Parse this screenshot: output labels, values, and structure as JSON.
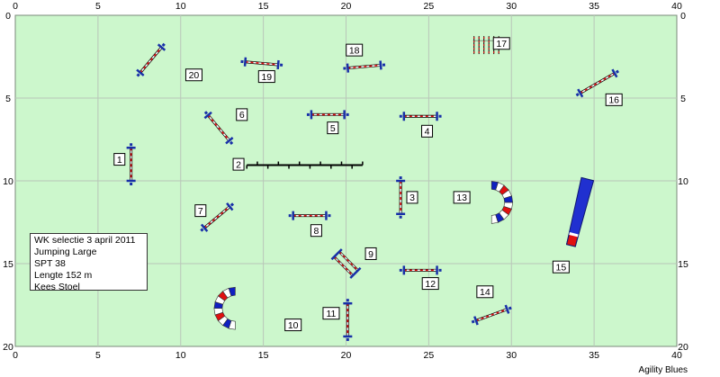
{
  "course": {
    "arena": {
      "width_m": 40,
      "height_m": 20
    },
    "axis": {
      "x_ticks": [
        0,
        5,
        10,
        15,
        20,
        25,
        30,
        35,
        40
      ],
      "y_ticks": [
        0,
        5,
        10,
        15,
        20
      ]
    },
    "colors": {
      "field": "#ccf7cc",
      "grid": "#b9c6b9",
      "pole_red": "#e01010",
      "pole_blue": "#1020a0",
      "stand": "#1830a8"
    },
    "obstacles": [
      {
        "number": "1",
        "type": "jump",
        "x": 7,
        "y": 9,
        "angle": 90,
        "length": 2,
        "label_x": 6.3,
        "label_y": 8.7
      },
      {
        "number": "2",
        "type": "weave",
        "x": 17.5,
        "y": 9.05,
        "angle": 0,
        "length": 7,
        "label_x": 13.5,
        "label_y": 9.0
      },
      {
        "number": "3",
        "type": "jump",
        "x": 23.3,
        "y": 11,
        "angle": 90,
        "length": 2,
        "label_x": 24.0,
        "label_y": 11.0
      },
      {
        "number": "4",
        "type": "jump",
        "x": 24.5,
        "y": 6.1,
        "angle": 0,
        "length": 2,
        "label_x": 24.9,
        "label_y": 7.0
      },
      {
        "number": "5",
        "type": "jump",
        "x": 18.9,
        "y": 6,
        "angle": 0,
        "length": 2,
        "label_x": 19.2,
        "label_y": 6.8
      },
      {
        "number": "6",
        "type": "jump",
        "x": 12.3,
        "y": 6.8,
        "angle": 50,
        "length": 2,
        "label_x": 13.7,
        "label_y": 6.0
      },
      {
        "number": "7",
        "type": "jump",
        "x": 12.2,
        "y": 12.2,
        "angle": -40,
        "length": 2,
        "label_x": 11.2,
        "label_y": 11.8
      },
      {
        "number": "8",
        "type": "jump",
        "x": 17.8,
        "y": 12.1,
        "angle": 0,
        "length": 2,
        "label_x": 18.2,
        "label_y": 13.0
      },
      {
        "number": "9",
        "type": "double",
        "x": 20,
        "y": 15,
        "angle": 45,
        "length": 1.6,
        "label_x": 21.5,
        "label_y": 14.4
      },
      {
        "number": "10",
        "type": "tunnel",
        "x": 13.3,
        "y": 17.7,
        "open": "right",
        "label_x": 16.8,
        "label_y": 18.7
      },
      {
        "number": "11",
        "type": "jump",
        "x": 20.1,
        "y": 18.4,
        "angle": 90,
        "length": 2,
        "label_x": 19.1,
        "label_y": 18.0
      },
      {
        "number": "12",
        "type": "jump",
        "x": 24.5,
        "y": 15.4,
        "angle": 0,
        "length": 2,
        "label_x": 25.1,
        "label_y": 16.2
      },
      {
        "number": "13",
        "type": "tunnel",
        "x": 28.8,
        "y": 11.3,
        "open": "left",
        "label_x": 27.0,
        "label_y": 11.0
      },
      {
        "number": "14",
        "type": "jump",
        "x": 28.8,
        "y": 18.1,
        "angle": -20,
        "length": 2,
        "label_x": 28.4,
        "label_y": 16.7
      },
      {
        "number": "15",
        "type": "long",
        "x": 34.1,
        "y": 11.9,
        "label_x": 33.0,
        "label_y": 15.2
      },
      {
        "number": "16",
        "type": "jump",
        "x": 35.2,
        "y": 4.1,
        "angle": -30,
        "length": 2.4,
        "label_x": 36.2,
        "label_y": 5.1
      },
      {
        "number": "17",
        "type": "wall",
        "x": 28.5,
        "y": 1.8,
        "label_x": 29.4,
        "label_y": 1.7
      },
      {
        "number": "18",
        "type": "jump",
        "x": 21.1,
        "y": 3.1,
        "angle": -5,
        "length": 2,
        "label_x": 20.5,
        "label_y": 2.1
      },
      {
        "number": "19",
        "type": "jump",
        "x": 14.9,
        "y": 2.9,
        "angle": 5,
        "length": 2,
        "label_x": 15.2,
        "label_y": 3.7
      },
      {
        "number": "20",
        "type": "jump",
        "x": 8.2,
        "y": 2.7,
        "angle": -50,
        "length": 2,
        "label_x": 10.8,
        "label_y": 3.6
      }
    ]
  },
  "info": {
    "line1": "WK selectie 3 april 2011",
    "line2": "Jumping Large",
    "line3": "SPT 38",
    "line4": "Lengte 152 m",
    "line5": "Kees Stoel"
  },
  "brand": "Agility Blues"
}
